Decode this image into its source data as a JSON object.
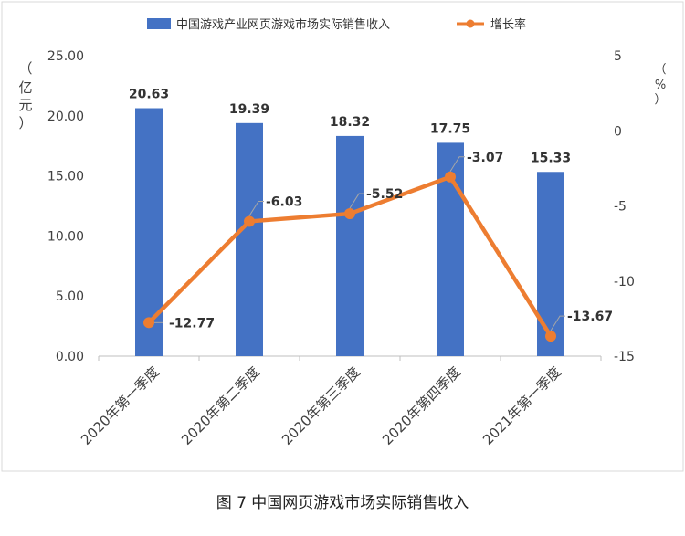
{
  "caption": "图 7 中国网页游戏市场实际销售收入",
  "chart_data": {
    "type": "bar",
    "categories": [
      "2020年第一季度",
      "2020年第二季度",
      "2020年第三季度",
      "2020年第四季度",
      "2021年第一季度"
    ],
    "series": [
      {
        "name": "中国游戏产业网页游戏市场实际销售收入",
        "type": "bar",
        "axis": "left",
        "color": "#4472C4",
        "values": [
          20.63,
          19.39,
          18.32,
          17.75,
          15.33
        ],
        "labels": [
          "20.63",
          "19.39",
          "18.32",
          "17.75",
          "15.33"
        ]
      },
      {
        "name": "增长率",
        "type": "line",
        "axis": "right",
        "color": "#ED7D31",
        "values": [
          -12.77,
          -6.03,
          -5.52,
          -3.07,
          -13.67
        ],
        "labels": [
          "-12.77",
          "-6.03",
          "-5.52",
          "-3.07",
          "-13.67"
        ]
      }
    ],
    "y_left": {
      "label_chars": [
        "（",
        "亿",
        "元",
        "）"
      ],
      "range": [
        0,
        25
      ],
      "ticks": [
        "0.00",
        "5.00",
        "10.00",
        "15.00",
        "20.00",
        "25.00"
      ]
    },
    "y_right": {
      "label_chars": [
        "（",
        "%",
        "）"
      ],
      "range": [
        -15,
        5
      ],
      "ticks": [
        "-15",
        "-10",
        "-5",
        "0",
        "5"
      ]
    },
    "legend_position": "top",
    "grid": false
  }
}
